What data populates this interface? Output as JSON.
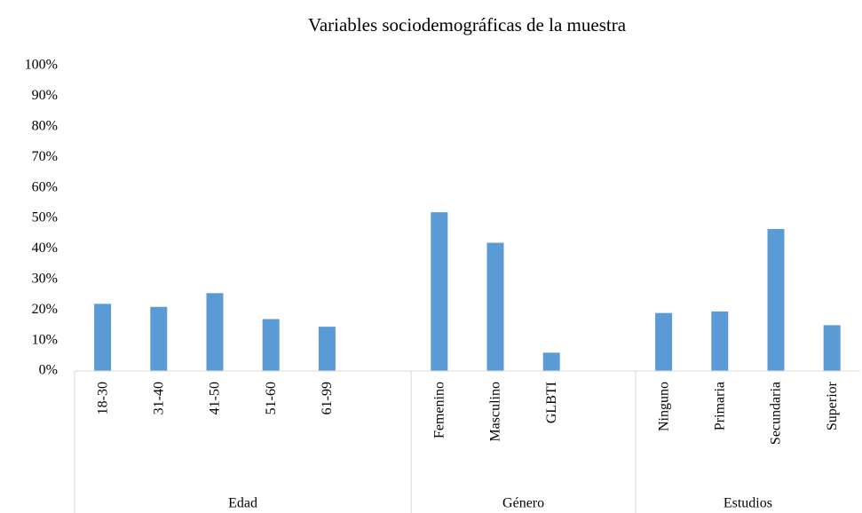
{
  "chart_data": {
    "type": "bar",
    "title": "Variables sociodemográficas de la muestra",
    "color": "#5b9bd5",
    "groups": [
      {
        "name": "Edad",
        "categories": [
          "18-30",
          "31-40",
          "41-50",
          "51-60",
          "61-99",
          null
        ],
        "values": [
          22,
          21,
          25.5,
          17,
          14.5,
          null
        ]
      },
      {
        "name": "Género",
        "categories": [
          "Femenino",
          "Masculino",
          "GLBTI",
          null
        ],
        "values": [
          52,
          42,
          6,
          null
        ]
      },
      {
        "name": "Estudios",
        "categories": [
          "Ninguno",
          "Primaria",
          "Secundaria",
          "Superior"
        ],
        "values": [
          19,
          19.5,
          46.5,
          15
        ]
      }
    ],
    "ylim": [
      0,
      100
    ],
    "yticks": [
      {
        "value": 0,
        "label": "0%"
      },
      {
        "value": 10,
        "label": "10%"
      },
      {
        "value": 20,
        "label": "20%"
      },
      {
        "value": 30,
        "label": "30%"
      },
      {
        "value": 40,
        "label": "40%"
      },
      {
        "value": 50,
        "label": "50%"
      },
      {
        "value": 60,
        "label": "60%"
      },
      {
        "value": 70,
        "label": "70%"
      },
      {
        "value": 80,
        "label": "80%"
      },
      {
        "value": 90,
        "label": "90%"
      },
      {
        "value": 100,
        "label": "100%"
      }
    ],
    "grid": false
  }
}
